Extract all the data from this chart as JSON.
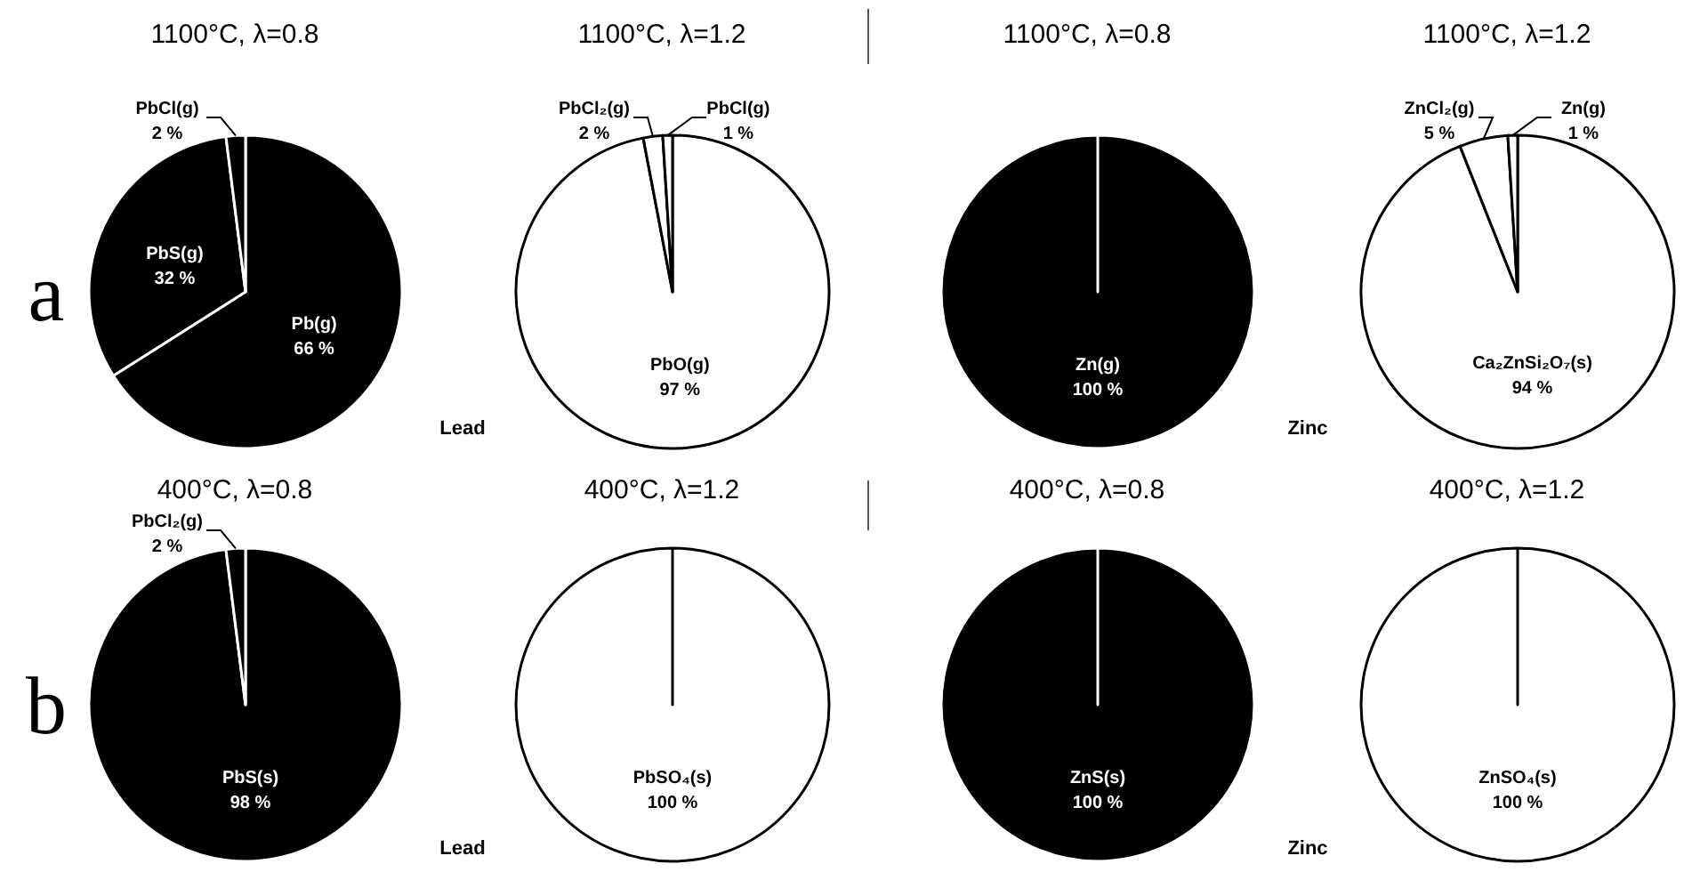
{
  "chart_data": [
    {
      "type": "pie",
      "title": "1100°C, λ=0.8",
      "categories": [
        "Pb(g)",
        "PbS(g)",
        "PbCl(g)"
      ],
      "values": [
        66,
        32,
        2
      ],
      "colors": [
        "#000000",
        "#000000",
        "#000000"
      ],
      "value_labels": [
        "66 %",
        "32 %",
        "2 %"
      ],
      "annotations": [
        "a"
      ]
    },
    {
      "type": "pie",
      "title": "1100°C, λ=1.2",
      "categories": [
        "PbO(g)",
        "PbCl₂(g)",
        "PbCl(g)"
      ],
      "values": [
        97,
        2,
        1
      ],
      "colors": [
        "#ffffff",
        "#ffffff",
        "#ffffff"
      ],
      "value_labels": [
        "97 %",
        "2 %",
        "1 %"
      ],
      "annotations": [
        "Lead"
      ]
    },
    {
      "type": "pie",
      "title": "1100°C, λ=0.8",
      "categories": [
        "Zn(g)"
      ],
      "values": [
        100
      ],
      "colors": [
        "#000000"
      ],
      "value_labels": [
        "100 %"
      ]
    },
    {
      "type": "pie",
      "title": "1100°C, λ=1.2",
      "categories": [
        "Ca₂ZnSi₂O₇(s)",
        "ZnCl₂(g)",
        "Zn(g)"
      ],
      "values": [
        94,
        5,
        1
      ],
      "colors": [
        "#ffffff",
        "#ffffff",
        "#ffffff"
      ],
      "value_labels": [
        "94 %",
        "5 %",
        "1 %"
      ],
      "annotations": [
        "Zinc"
      ]
    },
    {
      "type": "pie",
      "title": "400°C, λ=0.8",
      "categories": [
        "PbS(s)",
        "PbCl₂(g)"
      ],
      "values": [
        98,
        2
      ],
      "colors": [
        "#000000",
        "#000000"
      ],
      "value_labels": [
        "98 %",
        "2 %"
      ],
      "annotations": [
        "b"
      ]
    },
    {
      "type": "pie",
      "title": "400°C, λ=1.2",
      "categories": [
        "PbSO₄(s)"
      ],
      "values": [
        100
      ],
      "colors": [
        "#ffffff"
      ],
      "value_labels": [
        "100 %"
      ],
      "annotations": [
        "Lead"
      ]
    },
    {
      "type": "pie",
      "title": "400°C, λ=0.8",
      "categories": [
        "ZnS(s)"
      ],
      "values": [
        100
      ],
      "colors": [
        "#000000"
      ],
      "value_labels": [
        "100 %"
      ]
    },
    {
      "type": "pie",
      "title": "400°C, λ=1.2",
      "categories": [
        "ZnSO₄(s)"
      ],
      "values": [
        100
      ],
      "colors": [
        "#ffffff"
      ],
      "value_labels": [
        "100 %"
      ],
      "annotations": [
        "Zinc"
      ]
    }
  ]
}
